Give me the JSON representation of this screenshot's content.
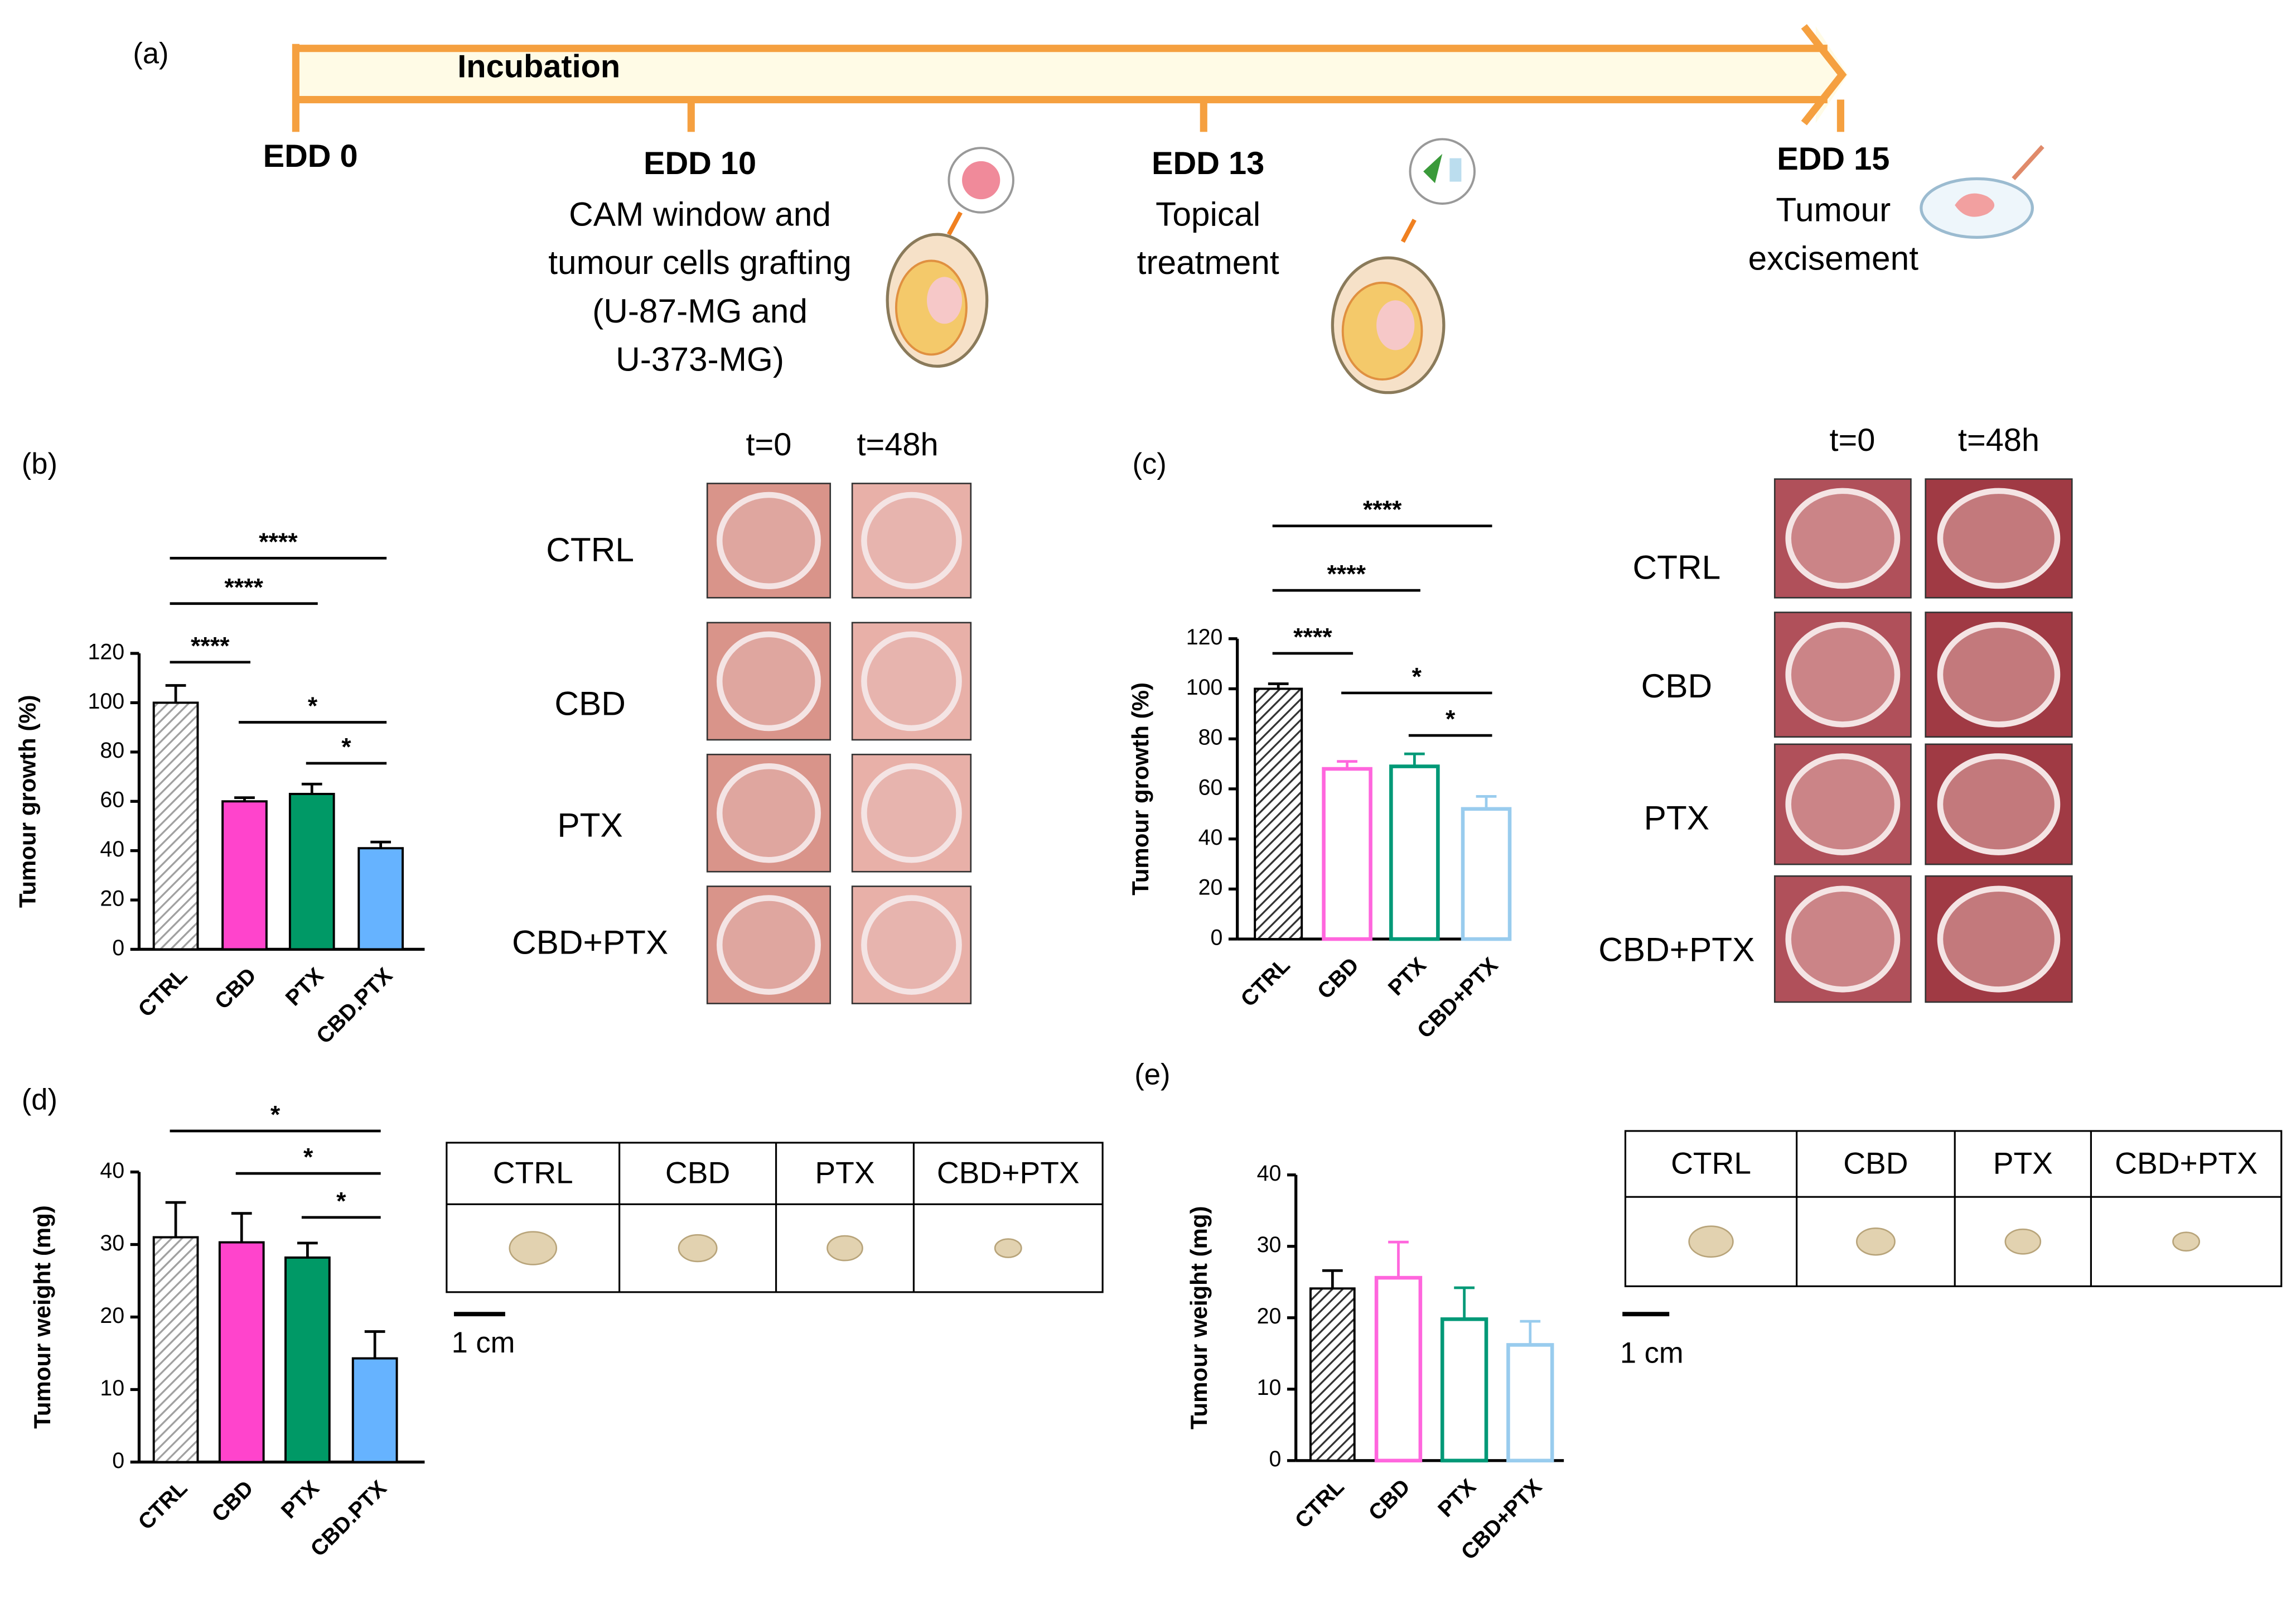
{
  "timeline": {
    "label": "(a)",
    "band": "Incubation",
    "steps": [
      {
        "title": "EDD 0",
        "lines": []
      },
      {
        "title": "EDD 10",
        "lines": [
          "CAM window and",
          "tumour cells grafting",
          "(U-87-MG and",
          "U-373-MG)"
        ]
      },
      {
        "title": "EDD 13",
        "lines": [
          "Topical",
          "treatment"
        ]
      },
      {
        "title": "EDD 15",
        "lines": [
          "Tumour",
          "excisement"
        ]
      }
    ]
  },
  "chart_data": [
    {
      "type": "bar",
      "label": "(b)",
      "y_label": "Tumour growth (%)",
      "categories": [
        "CTRL",
        "CBD",
        "PTX",
        "CBD.PTX"
      ],
      "values": [
        100,
        60,
        63,
        41
      ],
      "errors": [
        7,
        1.5,
        4,
        2.5
      ],
      "colors": [
        "#a0a0a0",
        "#ff44cc",
        "#009966",
        "#66b3ff"
      ],
      "bar_styles": [
        "hatch",
        "solid",
        "solid",
        "solid"
      ],
      "ylim": [
        0,
        120
      ],
      "yticks": [
        0,
        20,
        40,
        60,
        80,
        100,
        120
      ],
      "significance": [
        {
          "from": "CTRL",
          "to": "CBD",
          "label": "****"
        },
        {
          "from": "CTRL",
          "to": "PTX",
          "label": "****"
        },
        {
          "from": "CTRL",
          "to": "CBD.PTX",
          "label": "****"
        },
        {
          "from": "CBD",
          "to": "CBD.PTX",
          "label": "*"
        },
        {
          "from": "PTX",
          "to": "CBD.PTX",
          "label": "*"
        }
      ]
    },
    {
      "type": "bar",
      "label": "(c)",
      "y_label": "Tumour growth (%)",
      "categories": [
        "CTRL",
        "CBD",
        "PTX",
        "CBD+PTX"
      ],
      "values": [
        100,
        68,
        69,
        52
      ],
      "errors": [
        2,
        3,
        5,
        5
      ],
      "colors": [
        "#333333",
        "#ff66dd",
        "#009977",
        "#99ccee"
      ],
      "bar_styles": [
        "hatch",
        "outline",
        "outline",
        "outline"
      ],
      "ylim": [
        0,
        120
      ],
      "yticks": [
        0,
        20,
        40,
        60,
        80,
        100,
        120
      ],
      "significance": [
        {
          "from": "CTRL",
          "to": "CBD",
          "label": "****"
        },
        {
          "from": "CTRL",
          "to": "PTX",
          "label": "****"
        },
        {
          "from": "CTRL",
          "to": "CBD+PTX",
          "label": "****"
        },
        {
          "from": "CBD",
          "to": "CBD+PTX",
          "label": "*"
        },
        {
          "from": "PTX",
          "to": "CBD+PTX",
          "label": "*"
        }
      ]
    },
    {
      "type": "bar",
      "label": "(d)",
      "y_label": "Tumour weight (mg)",
      "categories": [
        "CTRL",
        "CBD",
        "PTX",
        "CBD.PTX"
      ],
      "values": [
        31,
        30.3,
        28.2,
        14.3
      ],
      "errors": [
        4.8,
        4,
        2,
        3.7
      ],
      "colors": [
        "#a0a0a0",
        "#ff44cc",
        "#009966",
        "#66b3ff"
      ],
      "bar_styles": [
        "hatch",
        "solid",
        "solid",
        "solid"
      ],
      "ylim": [
        0,
        40
      ],
      "yticks": [
        0,
        10,
        20,
        30,
        40
      ],
      "significance": [
        {
          "from": "CTRL",
          "to": "CBD.PTX",
          "label": "*"
        },
        {
          "from": "CBD",
          "to": "CBD.PTX",
          "label": "*"
        },
        {
          "from": "PTX",
          "to": "CBD.PTX",
          "label": "*"
        }
      ]
    },
    {
      "type": "bar",
      "label": "(e)",
      "y_label": "Tumour weight (mg)",
      "categories": [
        "CTRL",
        "CBD",
        "PTX",
        "CBD+PTX"
      ],
      "values": [
        24.1,
        25.6,
        19.8,
        16.2
      ],
      "errors": [
        2.5,
        5,
        4.4,
        3.3
      ],
      "colors": [
        "#333333",
        "#ff66dd",
        "#009977",
        "#99ccee"
      ],
      "bar_styles": [
        "hatch",
        "outline",
        "outline",
        "outline"
      ],
      "ylim": [
        0,
        40
      ],
      "yticks": [
        0,
        10,
        20,
        30,
        40
      ],
      "significance": []
    }
  ],
  "photo_grids": [
    {
      "columns": [
        "t=0",
        "t=48h"
      ],
      "rows": [
        "CTRL",
        "CBD",
        "PTX",
        "CBD+PTX"
      ]
    },
    {
      "columns": [
        "t=0",
        "t=48h"
      ],
      "rows": [
        "CTRL",
        "CBD",
        "PTX",
        "CBD+PTX"
      ]
    }
  ],
  "weight_tables": [
    {
      "headers": [
        "CTRL",
        "CBD",
        "PTX",
        "CBD+PTX"
      ],
      "scale": "1 cm"
    },
    {
      "headers": [
        "CTRL",
        "CBD",
        "PTX",
        "CBD+PTX"
      ],
      "scale": "1 cm"
    }
  ]
}
